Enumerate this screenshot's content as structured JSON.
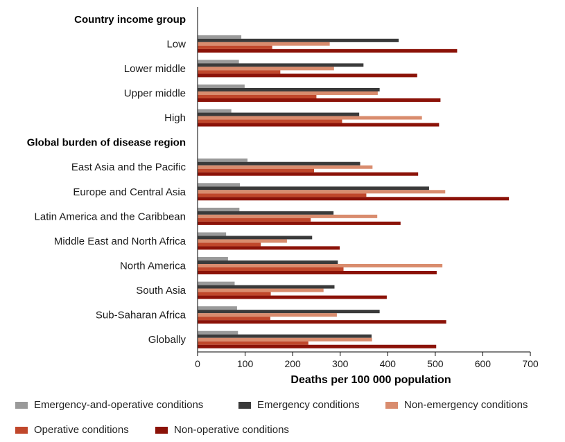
{
  "chart_data": {
    "type": "bar",
    "orientation": "horizontal",
    "title": "",
    "xlabel": "Deaths per 100 000 population",
    "ylabel": "",
    "xlim": [
      0,
      700
    ],
    "xticks": [
      "0",
      "100",
      "200",
      "300",
      "400",
      "500",
      "600",
      "700"
    ],
    "groups": [
      {
        "label": "Country income group",
        "categories": [
          "Low",
          "Lower middle",
          "Upper middle",
          "High"
        ]
      },
      {
        "label": "Global burden of disease region",
        "categories": [
          "East Asia and the Pacific",
          "Europe and Central Asia",
          "Latin America and the Caribbean",
          "Middle East and North Africa",
          "North America",
          "South Asia",
          "Sub-Saharan Africa",
          "Globally"
        ]
      }
    ],
    "categories": [
      "Low",
      "Lower middle",
      "Upper middle",
      "High",
      "East Asia and the Pacific",
      "Europe and Central Asia",
      "Latin America and the Caribbean",
      "Middle East and North Africa",
      "North America",
      "South Asia",
      "Sub-Saharan Africa",
      "Globally"
    ],
    "series": [
      {
        "name": "Emergency-and-operative conditions",
        "color": "#9a9a9a",
        "values": [
          92,
          87,
          99,
          71,
          105,
          89,
          88,
          60,
          64,
          78,
          83,
          85
        ]
      },
      {
        "name": "Emergency conditions",
        "color": "#3a3a3a",
        "values": [
          423,
          349,
          383,
          340,
          342,
          487,
          286,
          241,
          295,
          288,
          383,
          366
        ]
      },
      {
        "name": "Non-emergency conditions",
        "color": "#d98c6e",
        "values": [
          278,
          287,
          379,
          472,
          368,
          521,
          378,
          188,
          515,
          265,
          293,
          367
        ]
      },
      {
        "name": "Operative conditions",
        "color": "#c0472b",
        "values": [
          157,
          174,
          250,
          304,
          245,
          355,
          238,
          133,
          307,
          154,
          153,
          233
        ]
      },
      {
        "name": "Non-operative conditions",
        "color": "#8b1208",
        "values": [
          546,
          462,
          511,
          508,
          464,
          655,
          427,
          299,
          503,
          398,
          523,
          502
        ]
      }
    ]
  }
}
